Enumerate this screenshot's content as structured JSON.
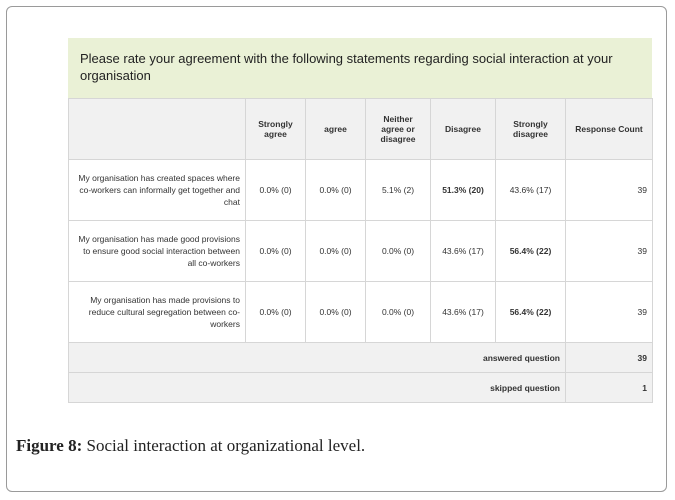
{
  "table": {
    "title": "Please rate your agreement with the following statements regarding social interaction at your organisation",
    "columns": [
      "Strongly agree",
      "agree",
      "Neither agree or disagree",
      "Disagree",
      "Strongly disagree",
      "Response Count"
    ],
    "rows": [
      {
        "label": "My organisation has created spaces where co-workers can informally get together and chat",
        "cells": [
          "0.0% (0)",
          "0.0% (0)",
          "5.1% (2)",
          "51.3% (20)",
          "43.6% (17)",
          "39"
        ],
        "bold": 3
      },
      {
        "label": "My organisation has made good provisions to ensure good social interaction between all co-workers",
        "cells": [
          "0.0% (0)",
          "0.0% (0)",
          "0.0% (0)",
          "43.6% (17)",
          "56.4% (22)",
          "39"
        ],
        "bold": 4
      },
      {
        "label": "My organisation has made provisions to reduce cultural segregation between co-workers",
        "cells": [
          "0.0% (0)",
          "0.0% (0)",
          "0.0% (0)",
          "43.6% (17)",
          "56.4% (22)",
          "39"
        ],
        "bold": 4
      }
    ],
    "footer": [
      {
        "label": "answered question",
        "value": "39"
      },
      {
        "label": "skipped question",
        "value": "1"
      }
    ]
  },
  "caption": {
    "label": "Figure 8:",
    "text": "Social interaction at organizational level."
  }
}
